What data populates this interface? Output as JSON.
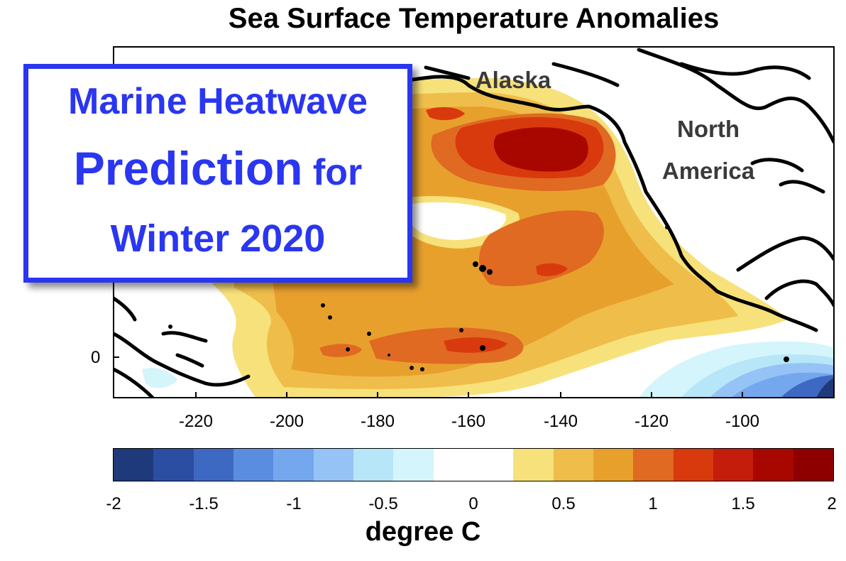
{
  "title": "Sea Surface Temperature Anomalies",
  "callout": {
    "line1": "Marine Heatwave",
    "line2_big": "Prediction",
    "line2_small": "for",
    "line3": "Winter 2020",
    "color": "#2a36f0"
  },
  "geo_labels": {
    "alaska": "Alaska",
    "north_america_1": "North",
    "north_america_2": "America"
  },
  "x_axis": {
    "ticks": [
      "-220",
      "-200",
      "-180",
      "-160",
      "-140",
      "-120",
      "-100"
    ]
  },
  "y_axis": {
    "ticks": [
      "0"
    ]
  },
  "colorbar": {
    "ticks": [
      "-2",
      "-1.5",
      "-1",
      "-0.5",
      "0",
      "0.5",
      "1",
      "1.5",
      "2"
    ],
    "label": "degree C",
    "colors": [
      "#1f3a7a",
      "#2b4ea3",
      "#3e69c2",
      "#5a8de0",
      "#74a7ee",
      "#95c3f5",
      "#b6e6f8",
      "#d3f5fb",
      "#ffffff",
      "#ffffff",
      "#f7e17a",
      "#efbd4a",
      "#e8a02d",
      "#e06a22",
      "#d83a0d",
      "#c51d0c",
      "#a80700",
      "#8e0000"
    ]
  }
}
